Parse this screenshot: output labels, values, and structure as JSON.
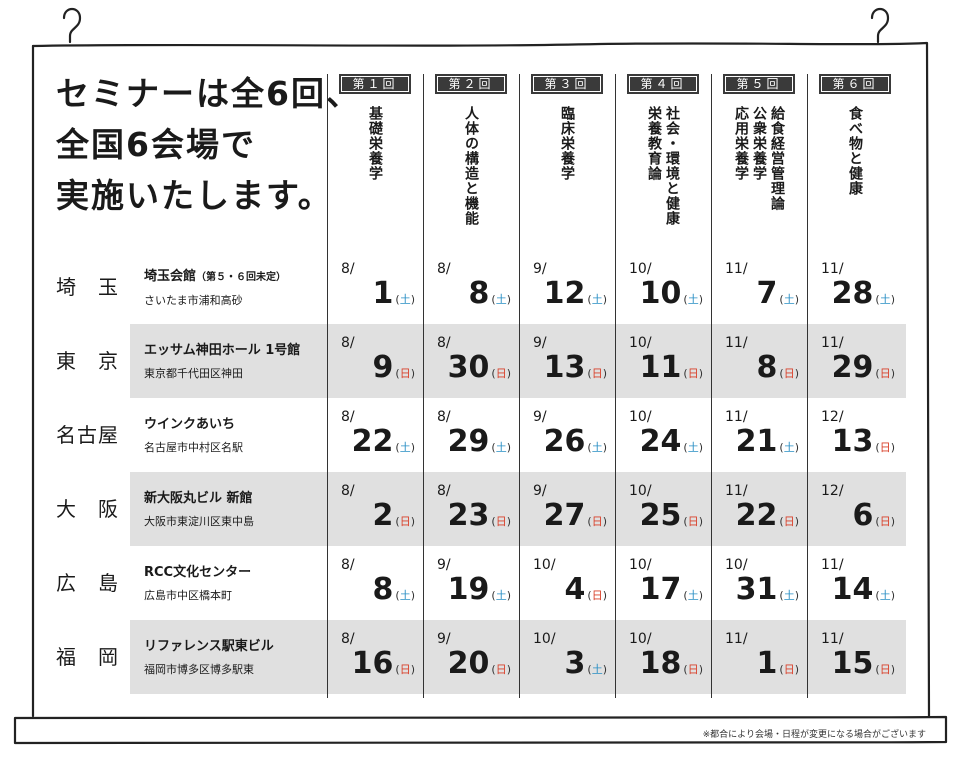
{
  "headline": [
    "セミナーは全6回、",
    "全国6会場で",
    "実施いたします。"
  ],
  "colors": {
    "saturday": "#2a8fc4",
    "sunday": "#d9402a",
    "band": "#e0e0e0",
    "badge": "#3a3a3a"
  },
  "sessions": [
    {
      "badge": "第１回",
      "title_cols": [
        "基礎栄養学"
      ]
    },
    {
      "badge": "第２回",
      "title_cols": [
        "人体の構造と機能"
      ]
    },
    {
      "badge": "第３回",
      "title_cols": [
        "臨床栄養学"
      ]
    },
    {
      "badge": "第４回",
      "title_cols": [
        "社会・環境と健康",
        "栄養教育論"
      ]
    },
    {
      "badge": "第５回",
      "title_cols": [
        "給食経営管理論",
        "公衆栄養学",
        "応用栄養学"
      ]
    },
    {
      "badge": "第６回",
      "title_cols": [
        "食べ物と健康"
      ]
    }
  ],
  "venues": [
    {
      "city": "埼玉",
      "name": "埼玉会館",
      "note": "（第５・６回未定）",
      "address": "さいたま市浦和高砂",
      "dates": [
        {
          "month": "8/",
          "day": "1",
          "weekday": "土"
        },
        {
          "month": "8/",
          "day": "8",
          "weekday": "土"
        },
        {
          "month": "9/",
          "day": "12",
          "weekday": "土"
        },
        {
          "month": "10/",
          "day": "10",
          "weekday": "土"
        },
        {
          "month": "11/",
          "day": "7",
          "weekday": "土"
        },
        {
          "month": "11/",
          "day": "28",
          "weekday": "土"
        }
      ]
    },
    {
      "city": "東京",
      "name": "エッサム神田ホール 1号館",
      "note": "",
      "address": "東京都千代田区神田",
      "dates": [
        {
          "month": "8/",
          "day": "9",
          "weekday": "日"
        },
        {
          "month": "8/",
          "day": "30",
          "weekday": "日"
        },
        {
          "month": "9/",
          "day": "13",
          "weekday": "日"
        },
        {
          "month": "10/",
          "day": "11",
          "weekday": "日"
        },
        {
          "month": "11/",
          "day": "8",
          "weekday": "日"
        },
        {
          "month": "11/",
          "day": "29",
          "weekday": "日"
        }
      ]
    },
    {
      "city": "名古屋",
      "name": "ウインクあいち",
      "note": "",
      "address": "名古屋市中村区名駅",
      "dates": [
        {
          "month": "8/",
          "day": "22",
          "weekday": "土"
        },
        {
          "month": "8/",
          "day": "29",
          "weekday": "土"
        },
        {
          "month": "9/",
          "day": "26",
          "weekday": "土"
        },
        {
          "month": "10/",
          "day": "24",
          "weekday": "土"
        },
        {
          "month": "11/",
          "day": "21",
          "weekday": "土"
        },
        {
          "month": "12/",
          "day": "13",
          "weekday": "日"
        }
      ]
    },
    {
      "city": "大阪",
      "name": "新大阪丸ビル 新館",
      "note": "",
      "address": "大阪市東淀川区東中島",
      "dates": [
        {
          "month": "8/",
          "day": "2",
          "weekday": "日"
        },
        {
          "month": "8/",
          "day": "23",
          "weekday": "日"
        },
        {
          "month": "9/",
          "day": "27",
          "weekday": "日"
        },
        {
          "month": "10/",
          "day": "25",
          "weekday": "日"
        },
        {
          "month": "11/",
          "day": "22",
          "weekday": "日"
        },
        {
          "month": "12/",
          "day": "6",
          "weekday": "日"
        }
      ]
    },
    {
      "city": "広島",
      "name": "RCC文化センター",
      "note": "",
      "address": "広島市中区橋本町",
      "dates": [
        {
          "month": "8/",
          "day": "8",
          "weekday": "土"
        },
        {
          "month": "9/",
          "day": "19",
          "weekday": "土"
        },
        {
          "month": "10/",
          "day": "4",
          "weekday": "日"
        },
        {
          "month": "10/",
          "day": "17",
          "weekday": "土"
        },
        {
          "month": "10/",
          "day": "31",
          "weekday": "土"
        },
        {
          "month": "11/",
          "day": "14",
          "weekday": "土"
        }
      ]
    },
    {
      "city": "福岡",
      "name": "リファレンス駅東ビル",
      "note": "",
      "address": "福岡市博多区博多駅東",
      "dates": [
        {
          "month": "8/",
          "day": "16",
          "weekday": "日"
        },
        {
          "month": "9/",
          "day": "20",
          "weekday": "日"
        },
        {
          "month": "10/",
          "day": "3",
          "weekday": "土"
        },
        {
          "month": "10/",
          "day": "18",
          "weekday": "日"
        },
        {
          "month": "11/",
          "day": "1",
          "weekday": "日"
        },
        {
          "month": "11/",
          "day": "15",
          "weekday": "日"
        }
      ]
    }
  ],
  "footnote": "※都合により会場・日程が変更になる場合がございます"
}
